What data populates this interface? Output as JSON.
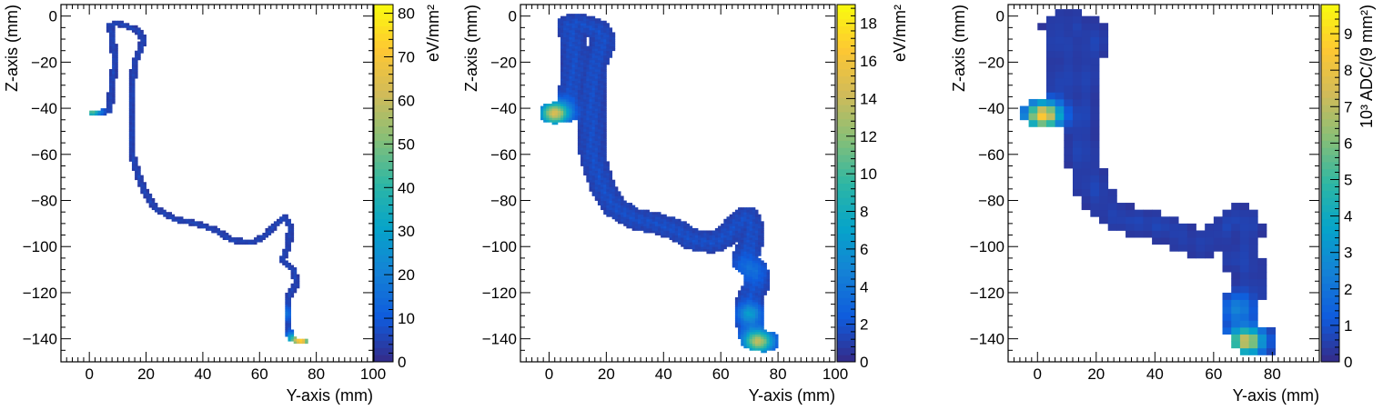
{
  "chart_data": [
    {
      "type": "heatmap",
      "xlabel": "Y-axis (mm)",
      "ylabel": "Z-axis (mm)",
      "colorbar_label": "eV/mm²",
      "xlim": [
        -10,
        100
      ],
      "ylim": [
        -150,
        5
      ],
      "xticks": [
        0,
        20,
        40,
        60,
        80,
        100
      ],
      "yticks": [
        0,
        -20,
        -40,
        -60,
        -80,
        -100,
        -120,
        -140
      ],
      "zlim": [
        0,
        82
      ],
      "zticks": [
        0,
        10,
        20,
        30,
        40,
        50,
        60,
        70,
        80
      ],
      "bin_size": 1,
      "track_width": 1.2,
      "track": [
        [
          1,
          -42
        ],
        [
          3,
          -42
        ],
        [
          7,
          -41
        ],
        [
          8,
          -30
        ],
        [
          9,
          -20
        ],
        [
          8,
          -8
        ],
        [
          7,
          -4
        ],
        [
          10,
          -3
        ],
        [
          17,
          -6
        ],
        [
          19,
          -10
        ],
        [
          18,
          -14
        ],
        [
          16,
          -20
        ],
        [
          15,
          -30
        ],
        [
          15,
          -50
        ],
        [
          15,
          -60
        ],
        [
          17,
          -68
        ],
        [
          19,
          -75
        ],
        [
          23,
          -83
        ],
        [
          30,
          -88
        ],
        [
          38,
          -90
        ],
        [
          45,
          -93
        ],
        [
          50,
          -97
        ],
        [
          55,
          -98
        ],
        [
          58,
          -98
        ],
        [
          62,
          -95
        ],
        [
          66,
          -90
        ],
        [
          69,
          -87
        ],
        [
          71,
          -92
        ],
        [
          70,
          -100
        ],
        [
          68,
          -106
        ],
        [
          72,
          -110
        ],
        [
          73,
          -116
        ],
        [
          70,
          -122
        ],
        [
          70,
          -130
        ],
        [
          70,
          -135
        ],
        [
          71,
          -140
        ],
        [
          74,
          -141
        ],
        [
          76,
          -141
        ]
      ],
      "hotspots": [
        [
          1,
          -41,
          42,
          2
        ],
        [
          72,
          -140,
          30,
          2
        ],
        [
          75,
          -141,
          58,
          2
        ],
        [
          69,
          -129,
          12,
          2
        ]
      ],
      "base_value": 6
    },
    {
      "type": "heatmap",
      "xlabel": "Y-axis (mm)",
      "ylabel": "Z-axis (mm)",
      "colorbar_label": "eV/mm²",
      "xlim": [
        -10,
        100
      ],
      "ylim": [
        -150,
        5
      ],
      "xticks": [
        0,
        20,
        40,
        60,
        80,
        100
      ],
      "yticks": [
        0,
        -20,
        -40,
        -60,
        -80,
        -100,
        -120,
        -140
      ],
      "zlim": [
        0,
        19
      ],
      "zticks": [
        0,
        2,
        4,
        6,
        8,
        10,
        12,
        14,
        16,
        18
      ],
      "bin_size": 1,
      "track_width": 4.5,
      "track": [
        [
          1,
          -42
        ],
        [
          3,
          -42
        ],
        [
          7,
          -41
        ],
        [
          8,
          -30
        ],
        [
          9,
          -20
        ],
        [
          8,
          -8
        ],
        [
          7,
          -4
        ],
        [
          10,
          -3
        ],
        [
          17,
          -6
        ],
        [
          19,
          -10
        ],
        [
          18,
          -14
        ],
        [
          16,
          -20
        ],
        [
          15,
          -30
        ],
        [
          15,
          -50
        ],
        [
          15,
          -60
        ],
        [
          17,
          -68
        ],
        [
          19,
          -75
        ],
        [
          23,
          -83
        ],
        [
          30,
          -88
        ],
        [
          38,
          -90
        ],
        [
          45,
          -93
        ],
        [
          50,
          -97
        ],
        [
          55,
          -98
        ],
        [
          58,
          -98
        ],
        [
          62,
          -95
        ],
        [
          66,
          -90
        ],
        [
          69,
          -87
        ],
        [
          71,
          -92
        ],
        [
          70,
          -100
        ],
        [
          68,
          -106
        ],
        [
          72,
          -110
        ],
        [
          73,
          -116
        ],
        [
          70,
          -122
        ],
        [
          70,
          -130
        ],
        [
          70,
          -135
        ],
        [
          71,
          -140
        ],
        [
          74,
          -141
        ],
        [
          76,
          -141
        ]
      ],
      "hotspots": [
        [
          2,
          -42,
          13,
          3.5
        ],
        [
          73,
          -141,
          12,
          3.5
        ],
        [
          70,
          -129,
          5,
          3
        ],
        [
          70,
          -110,
          2,
          4
        ]
      ],
      "base_value": 1.8
    },
    {
      "type": "heatmap",
      "xlabel": "Y-axis (mm)",
      "ylabel": "Z-axis (mm)",
      "colorbar_label": "10³ ADC/(9 mm²)",
      "xlim": [
        -10,
        96
      ],
      "ylim": [
        -150,
        5
      ],
      "xticks": [
        0,
        20,
        40,
        60,
        80
      ],
      "yticks": [
        0,
        -20,
        -40,
        -60,
        -80,
        -100,
        -120,
        -140
      ],
      "zlim": [
        0,
        9.8
      ],
      "zticks": [
        0,
        1,
        2,
        3,
        4,
        5,
        6,
        7,
        8,
        9
      ],
      "bin_size": 3,
      "track_width": 6,
      "track": [
        [
          1,
          -42
        ],
        [
          3,
          -42
        ],
        [
          7,
          -41
        ],
        [
          8,
          -30
        ],
        [
          9,
          -20
        ],
        [
          8,
          -8
        ],
        [
          7,
          -4
        ],
        [
          10,
          -3
        ],
        [
          17,
          -6
        ],
        [
          19,
          -10
        ],
        [
          18,
          -14
        ],
        [
          16,
          -20
        ],
        [
          15,
          -30
        ],
        [
          15,
          -50
        ],
        [
          15,
          -60
        ],
        [
          17,
          -68
        ],
        [
          19,
          -75
        ],
        [
          23,
          -83
        ],
        [
          30,
          -88
        ],
        [
          38,
          -90
        ],
        [
          45,
          -93
        ],
        [
          50,
          -97
        ],
        [
          55,
          -98
        ],
        [
          58,
          -98
        ],
        [
          62,
          -95
        ],
        [
          66,
          -90
        ],
        [
          69,
          -87
        ],
        [
          71,
          -92
        ],
        [
          70,
          -100
        ],
        [
          68,
          -106
        ],
        [
          72,
          -110
        ],
        [
          73,
          -116
        ],
        [
          70,
          -122
        ],
        [
          70,
          -130
        ],
        [
          70,
          -135
        ],
        [
          71,
          -140
        ],
        [
          74,
          -141
        ],
        [
          76,
          -141
        ]
      ],
      "hotspots": [
        [
          2,
          -43,
          8,
          4
        ],
        [
          71,
          -141,
          7,
          4
        ],
        [
          68,
          -127,
          2,
          4
        ]
      ],
      "base_value": 0.6
    }
  ]
}
